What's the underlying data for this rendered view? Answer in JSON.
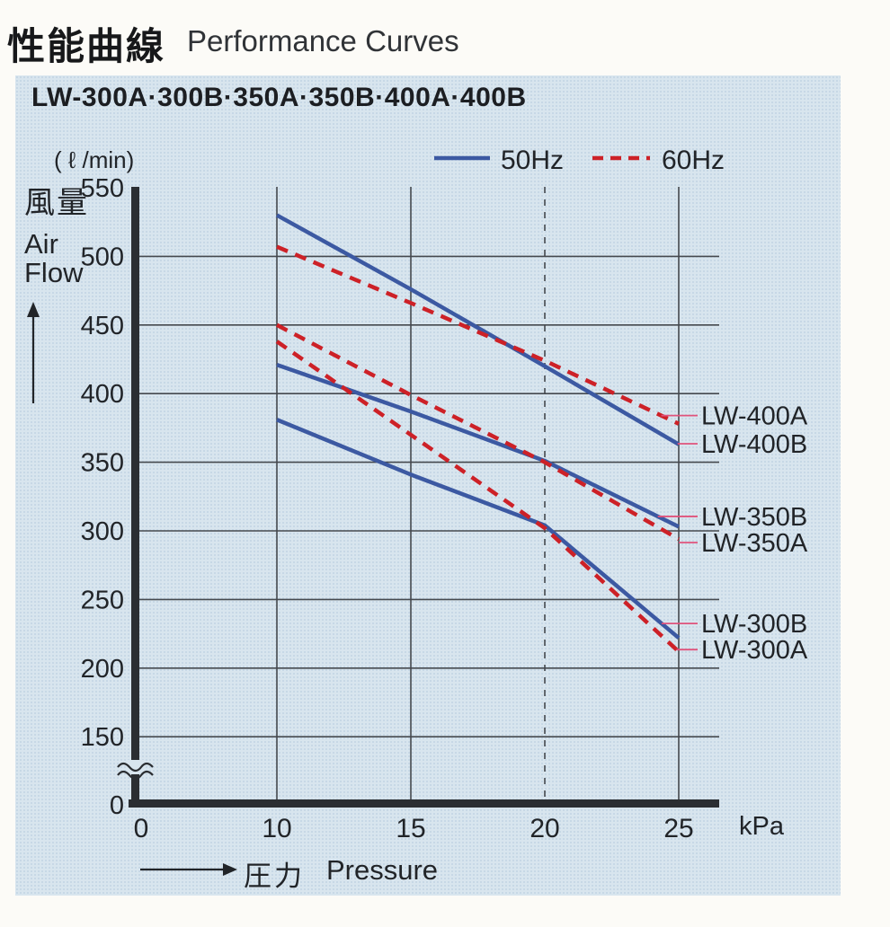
{
  "header": {
    "title_ja": "性能曲線",
    "title_en": "Performance Curves"
  },
  "panel": {
    "heading": "LW-300A·300B·350A·350B·400A·400B",
    "bg_color": "#d8e5ee"
  },
  "axes": {
    "y_unit": "( ℓ /min)",
    "y_label_ja": "風量",
    "y_label_en": "Air\nFlow",
    "x_label_ja": "圧力",
    "x_label_en": "Pressure",
    "x_unit": "kPa",
    "y_ticks": [
      550,
      500,
      450,
      400,
      350,
      300,
      250,
      200,
      150,
      0
    ],
    "x_ticks": [
      0,
      10,
      15,
      20,
      25
    ]
  },
  "legend": {
    "items": [
      {
        "label": "50Hz",
        "style": "solid",
        "color": "#3c59a2"
      },
      {
        "label": "60Hz",
        "style": "dashed",
        "color": "#cd2127"
      }
    ]
  },
  "chart_data": {
    "type": "line",
    "title": "LW-300A·300B·350A·350B·400A·400B",
    "xlabel": "圧力 Pressure (kPa)",
    "ylabel": "風量 Air Flow (ℓ/min)",
    "x": [
      10,
      15,
      20,
      25
    ],
    "x_range": [
      0,
      25
    ],
    "y_range": [
      0,
      550
    ],
    "y_axis_break_between": [
      0,
      150
    ],
    "grid": "on",
    "dashed_guide_x": 20,
    "legend_position": "top",
    "series": [
      {
        "name": "LW-400B",
        "freq": "50Hz",
        "line": "solid",
        "values": [
          530,
          476,
          420,
          363
        ],
        "label_at": 363.5
      },
      {
        "name": "LW-400A",
        "freq": "60Hz",
        "line": "dashed",
        "values": [
          507,
          466,
          424,
          378
        ],
        "label_at": 384
      },
      {
        "name": "LW-350B",
        "freq": "50Hz",
        "line": "solid",
        "values": [
          421,
          387,
          351,
          303
        ],
        "label_at": 310.5
      },
      {
        "name": "LW-350A",
        "freq": "60Hz",
        "line": "dashed",
        "values": [
          450,
          399,
          350,
          294
        ],
        "label_at": 291.5
      },
      {
        "name": "LW-300B",
        "freq": "50Hz",
        "line": "solid",
        "values": [
          381,
          341,
          304,
          222
        ],
        "label_at": 232.5
      },
      {
        "name": "LW-300A",
        "freq": "60Hz",
        "line": "dashed",
        "values": [
          438,
          370,
          302,
          212
        ],
        "label_at": 213.5
      }
    ],
    "colors": {
      "solid_50hz": "#3c59a2",
      "dashed_60hz": "#cd2127",
      "leader": "#e0537c",
      "grid": "#45494e",
      "axis": "#2b2e32",
      "text": "#212428"
    }
  }
}
